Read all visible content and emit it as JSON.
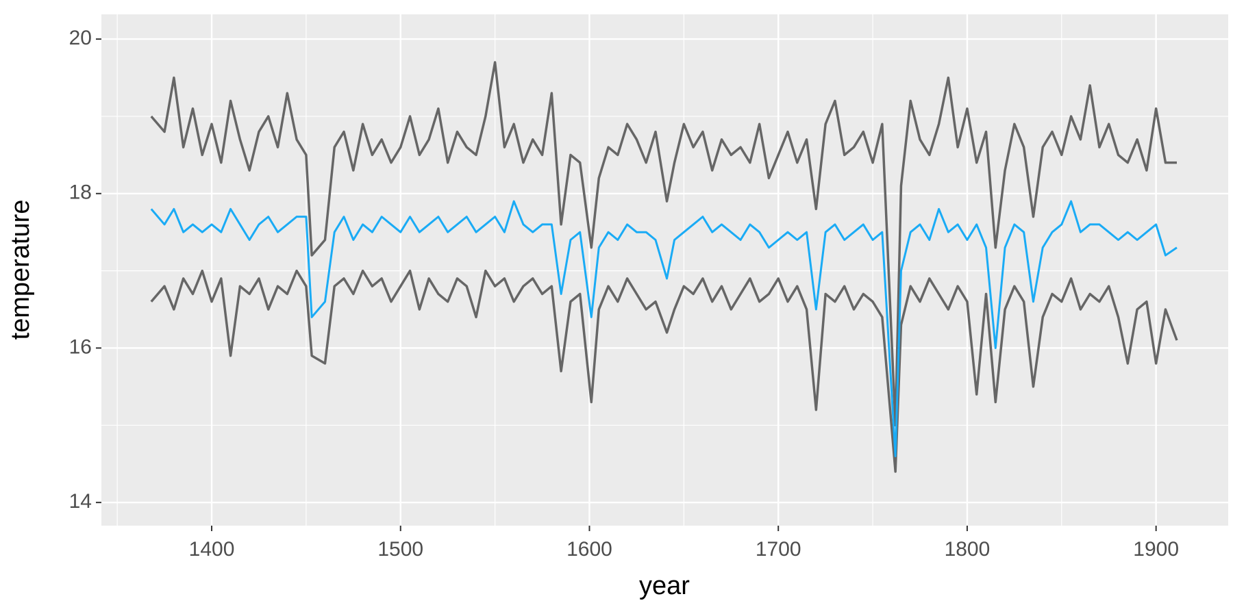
{
  "chart_data": {
    "type": "line",
    "x_label": "year",
    "y_label": "temperature",
    "x": [
      1368,
      1375,
      1380,
      1385,
      1390,
      1395,
      1400,
      1405,
      1410,
      1415,
      1420,
      1425,
      1430,
      1435,
      1440,
      1445,
      1450,
      1453,
      1460,
      1465,
      1470,
      1475,
      1480,
      1485,
      1490,
      1495,
      1500,
      1505,
      1510,
      1515,
      1520,
      1525,
      1530,
      1535,
      1540,
      1545,
      1550,
      1555,
      1560,
      1565,
      1570,
      1575,
      1580,
      1585,
      1590,
      1595,
      1601,
      1605,
      1610,
      1615,
      1620,
      1625,
      1630,
      1635,
      1641,
      1645,
      1650,
      1655,
      1660,
      1665,
      1670,
      1675,
      1680,
      1685,
      1690,
      1695,
      1700,
      1705,
      1710,
      1715,
      1720,
      1725,
      1730,
      1735,
      1740,
      1745,
      1750,
      1755,
      1762,
      1765,
      1770,
      1775,
      1780,
      1785,
      1790,
      1795,
      1800,
      1805,
      1810,
      1815,
      1820,
      1825,
      1830,
      1835,
      1840,
      1845,
      1850,
      1855,
      1860,
      1865,
      1870,
      1875,
      1880,
      1885,
      1890,
      1895,
      1900,
      1905,
      1911
    ],
    "series": [
      {
        "color": "#666666",
        "values": [
          19.0,
          18.8,
          19.5,
          18.6,
          19.1,
          18.5,
          18.9,
          18.4,
          19.2,
          18.7,
          18.3,
          18.8,
          19.0,
          18.6,
          19.3,
          18.7,
          18.5,
          17.2,
          17.4,
          18.6,
          18.8,
          18.3,
          18.9,
          18.5,
          18.7,
          18.4,
          18.6,
          19.0,
          18.5,
          18.7,
          19.1,
          18.4,
          18.8,
          18.6,
          18.5,
          19.0,
          19.7,
          18.6,
          18.9,
          18.4,
          18.7,
          18.5,
          19.3,
          17.6,
          18.5,
          18.4,
          17.3,
          18.2,
          18.6,
          18.5,
          18.9,
          18.7,
          18.4,
          18.8,
          17.9,
          18.4,
          18.9,
          18.6,
          18.8,
          18.3,
          18.7,
          18.5,
          18.6,
          18.4,
          18.9,
          18.2,
          18.5,
          18.8,
          18.4,
          18.7,
          17.8,
          18.9,
          19.2,
          18.5,
          18.6,
          18.8,
          18.4,
          18.9,
          15.0,
          18.1,
          19.2,
          18.7,
          18.5,
          18.9,
          19.5,
          18.6,
          19.1,
          18.4,
          18.8,
          17.3,
          18.3,
          18.9,
          18.6,
          17.7,
          18.6,
          18.8,
          18.5,
          19.0,
          18.7,
          19.4,
          18.6,
          18.9,
          18.5,
          18.4,
          18.7,
          18.3,
          19.1,
          18.4,
          18.4
        ]
      },
      {
        "color": "#666666",
        "values": [
          16.6,
          16.8,
          16.5,
          16.9,
          16.7,
          17.0,
          16.6,
          16.9,
          15.9,
          16.8,
          16.7,
          16.9,
          16.5,
          16.8,
          16.7,
          17.0,
          16.8,
          15.9,
          15.8,
          16.8,
          16.9,
          16.7,
          17.0,
          16.8,
          16.9,
          16.6,
          16.8,
          17.0,
          16.5,
          16.9,
          16.7,
          16.6,
          16.9,
          16.8,
          16.4,
          17.0,
          16.8,
          16.9,
          16.6,
          16.8,
          16.9,
          16.7,
          16.8,
          15.7,
          16.6,
          16.7,
          15.3,
          16.5,
          16.8,
          16.6,
          16.9,
          16.7,
          16.5,
          16.6,
          16.2,
          16.5,
          16.8,
          16.7,
          16.9,
          16.6,
          16.8,
          16.5,
          16.7,
          16.9,
          16.6,
          16.7,
          16.9,
          16.6,
          16.8,
          16.5,
          15.2,
          16.7,
          16.6,
          16.8,
          16.5,
          16.7,
          16.6,
          16.4,
          14.4,
          16.3,
          16.8,
          16.6,
          16.9,
          16.7,
          16.5,
          16.8,
          16.6,
          15.4,
          16.7,
          15.3,
          16.5,
          16.8,
          16.6,
          15.5,
          16.4,
          16.7,
          16.6,
          16.9,
          16.5,
          16.7,
          16.6,
          16.8,
          16.4,
          15.8,
          16.5,
          16.6,
          15.8,
          16.5,
          16.1
        ]
      },
      {
        "color": "#1aabf5",
        "values": [
          17.8,
          17.6,
          17.8,
          17.5,
          17.6,
          17.5,
          17.6,
          17.5,
          17.8,
          17.6,
          17.4,
          17.6,
          17.7,
          17.5,
          17.6,
          17.7,
          17.7,
          16.4,
          16.6,
          17.5,
          17.7,
          17.4,
          17.6,
          17.5,
          17.7,
          17.6,
          17.5,
          17.7,
          17.5,
          17.6,
          17.7,
          17.5,
          17.6,
          17.7,
          17.5,
          17.6,
          17.7,
          17.5,
          17.9,
          17.6,
          17.5,
          17.6,
          17.6,
          16.7,
          17.4,
          17.5,
          16.4,
          17.3,
          17.5,
          17.4,
          17.6,
          17.5,
          17.5,
          17.4,
          16.9,
          17.4,
          17.5,
          17.6,
          17.7,
          17.5,
          17.6,
          17.5,
          17.4,
          17.6,
          17.5,
          17.3,
          17.4,
          17.5,
          17.4,
          17.5,
          16.5,
          17.5,
          17.6,
          17.4,
          17.5,
          17.6,
          17.4,
          17.5,
          14.6,
          17.0,
          17.5,
          17.6,
          17.4,
          17.8,
          17.5,
          17.6,
          17.4,
          17.6,
          17.3,
          16.0,
          17.3,
          17.6,
          17.5,
          16.6,
          17.3,
          17.5,
          17.6,
          17.9,
          17.5,
          17.6,
          17.6,
          17.5,
          17.4,
          17.5,
          17.4,
          17.5,
          17.6,
          17.2,
          17.3
        ]
      }
    ],
    "xlim": [
      1341.6,
      1938.2
    ],
    "xticks": [
      1400,
      1500,
      1600,
      1700,
      1800,
      1900
    ],
    "ylim": [
      13.7,
      20.32
    ],
    "yticks": [
      14,
      16,
      18,
      20
    ],
    "grid": true
  }
}
